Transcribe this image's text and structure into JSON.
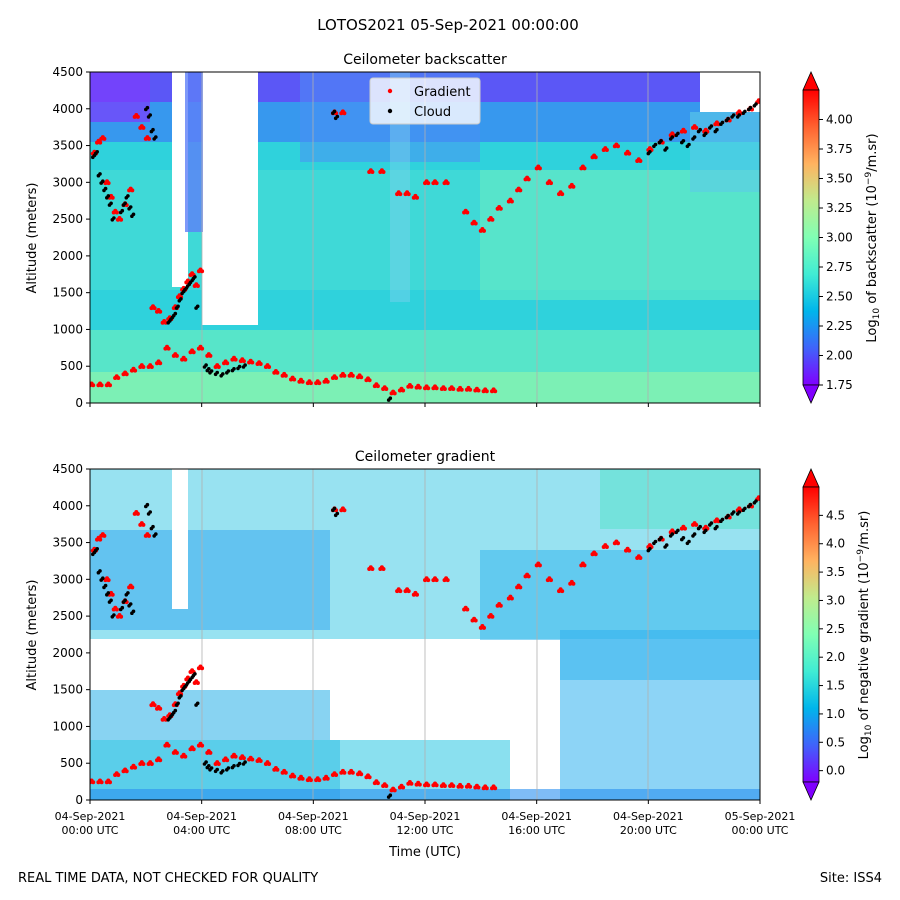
{
  "suptitle": "LOTOS2021 05-Sep-2021 00:00:00",
  "footer_left": "REAL TIME DATA, NOT CHECKED FOR QUALITY",
  "footer_right": "Site: ISS4",
  "colormap": [
    "#8000ff",
    "#4063fb",
    "#00b5eb",
    "#40ecd4",
    "#80ffb4",
    "#c0eb8d",
    "#ffb360",
    "#ff6230",
    "#ff0000"
  ],
  "series_colors": {
    "gradient": "#ff0000",
    "cloud": "#000000"
  },
  "chart_data": [
    {
      "type": "heatmap",
      "title": "Ceilometer backscatter",
      "ylabel": "Altitude (meters)",
      "xlabel": "",
      "x_tick_labels": [],
      "ylim": [
        0,
        4500
      ],
      "xlim_hours": [
        0,
        24
      ],
      "y_ticks": [
        0,
        500,
        1000,
        1500,
        2000,
        2500,
        3000,
        3500,
        4000,
        4500
      ],
      "colorbar": {
        "label_pre": "Log",
        "label_sub": "10",
        "label_mid": " of backscatter (10",
        "label_sup": "−9",
        "label_post": "/m.sr)",
        "range": [
          1.75,
          4.25
        ],
        "ticks": [
          "1.75",
          "2.00",
          "2.25",
          "2.50",
          "2.75",
          "3.00",
          "3.25",
          "3.50",
          "3.75",
          "4.00"
        ],
        "extend": "both"
      },
      "legend": {
        "position": "top-center",
        "entries": [
          {
            "label": "Gradient",
            "color": "#ff0000"
          },
          {
            "label": "Cloud",
            "color": "#000000"
          }
        ]
      },
      "field_description": "mostly 2.3-2.7 (cyan/teal) with higher values near surface, purple/blue low values aloft",
      "gradient_series": {
        "x_hours": [
          0.0,
          0.3,
          0.6,
          0.9,
          1.2,
          1.5,
          1.8,
          2.1,
          2.4,
          2.7,
          3.0,
          3.3,
          3.6,
          3.9,
          4.2,
          4.5,
          4.8,
          5.1,
          5.4,
          5.7,
          6.0,
          6.3,
          6.6,
          6.9,
          7.2,
          7.5,
          7.8,
          8.1,
          8.4,
          8.7,
          9.0,
          9.3,
          9.6,
          9.9,
          10.2,
          10.5,
          10.8,
          11.1,
          11.4,
          11.7,
          12.0,
          12.3,
          12.6,
          12.9,
          13.2,
          13.5,
          13.8,
          14.1,
          14.4
        ],
        "y_m": [
          250,
          250,
          250,
          350,
          400,
          450,
          500,
          500,
          550,
          750,
          650,
          600,
          700,
          750,
          650,
          500,
          550,
          600,
          580,
          560,
          540,
          500,
          420,
          380,
          330,
          300,
          280,
          280,
          300,
          350,
          380,
          380,
          360,
          320,
          240,
          200,
          140,
          180,
          230,
          220,
          210,
          210,
          200,
          200,
          190,
          190,
          180,
          170,
          170
        ]
      },
      "gradient_upper": {
        "x_hours": [
          0.1,
          0.25,
          0.4,
          0.55,
          0.7,
          0.85,
          1.0,
          1.2,
          1.4,
          1.6,
          1.8,
          2.0,
          2.2,
          2.4,
          2.6,
          2.8,
          3.0,
          3.15,
          3.3,
          3.45,
          3.6,
          3.75,
          3.9,
          8.7,
          9.0,
          10.0,
          10.4,
          11.0,
          11.3,
          11.6,
          12.0,
          12.3,
          12.7,
          13.4,
          13.7,
          14.0,
          14.3,
          14.6,
          15.0,
          15.3,
          15.6,
          16.0,
          16.4,
          16.8,
          17.2,
          17.6,
          18.0,
          18.4,
          18.8,
          19.2,
          19.6,
          20.0,
          20.4,
          20.8,
          21.2,
          21.6,
          22.0,
          22.4,
          22.8,
          23.2,
          23.6,
          23.9
        ],
        "y_m": [
          3400,
          3550,
          3600,
          3000,
          2800,
          2600,
          2500,
          2700,
          2900,
          3900,
          3750,
          3600,
          1300,
          1250,
          1100,
          1150,
          1300,
          1450,
          1550,
          1650,
          1750,
          1600,
          1800,
          3950,
          3950,
          3150,
          3150,
          2850,
          2850,
          2800,
          3000,
          3000,
          3000,
          2600,
          2450,
          2350,
          2500,
          2650,
          2750,
          2900,
          3050,
          3200,
          3000,
          2850,
          2950,
          3200,
          3350,
          3450,
          3500,
          3400,
          3300,
          3450,
          3550,
          3650,
          3700,
          3750,
          3700,
          3800,
          3850,
          3950,
          4000,
          4100
        ]
      },
      "cloud_series": {
        "x_hours": [
          0.1,
          0.2,
          0.3,
          0.4,
          0.5,
          0.6,
          0.7,
          0.8,
          1.1,
          1.2,
          1.3,
          1.4,
          1.5,
          2.0,
          2.1,
          2.2,
          2.3,
          2.8,
          2.9,
          3.0,
          3.1,
          3.2,
          3.3,
          3.4,
          3.5,
          3.6,
          3.7,
          3.8,
          4.1,
          4.2,
          4.3,
          4.5,
          4.7,
          4.9,
          5.1,
          5.3,
          5.5,
          8.7,
          8.8,
          10.7,
          20.0,
          20.2,
          20.4,
          20.6,
          20.8,
          21.0,
          21.2,
          21.4,
          21.6,
          21.8,
          22.0,
          22.2,
          22.4,
          22.6,
          22.8,
          23.0,
          23.2,
          23.4,
          23.6,
          23.8
        ],
        "y_m": [
          3350,
          3400,
          3100,
          3000,
          2900,
          2800,
          2700,
          2500,
          2600,
          2700,
          2800,
          2650,
          2550,
          4000,
          3900,
          3700,
          3600,
          1100,
          1150,
          1200,
          1300,
          1400,
          1500,
          1550,
          1600,
          1650,
          1700,
          1300,
          500,
          450,
          420,
          400,
          380,
          420,
          450,
          480,
          500,
          3950,
          3880,
          50,
          3400,
          3500,
          3550,
          3450,
          3600,
          3650,
          3550,
          3500,
          3600,
          3700,
          3650,
          3750,
          3700,
          3800,
          3850,
          3900,
          3900,
          3950,
          4000,
          4050
        ]
      }
    },
    {
      "type": "heatmap",
      "title": "Ceilometer gradient",
      "ylabel": "Altitude (meters)",
      "xlabel": "Time (UTC)",
      "x_tick_labels": [
        "04-Sep-2021\n00:00 UTC",
        "04-Sep-2021\n04:00 UTC",
        "04-Sep-2021\n08:00 UTC",
        "04-Sep-2021\n12:00 UTC",
        "04-Sep-2021\n16:00 UTC",
        "04-Sep-2021\n20:00 UTC",
        "05-Sep-2021\n00:00 UTC"
      ],
      "ylim": [
        0,
        4500
      ],
      "xlim_hours": [
        0,
        24
      ],
      "y_ticks": [
        0,
        500,
        1000,
        1500,
        2000,
        2500,
        3000,
        3500,
        4000,
        4500
      ],
      "colorbar": {
        "label_pre": "Log",
        "label_sub": "10",
        "label_mid": " of negative gradient (10",
        "label_sup": "−9",
        "label_post": "/m.sr)",
        "range": [
          -0.2,
          5.0
        ],
        "ticks": [
          "0.0",
          "0.5",
          "1.0",
          "1.5",
          "2.0",
          "2.5",
          "3.0",
          "3.5",
          "4.0",
          "4.5"
        ],
        "extend": "both"
      },
      "field_description": "patchy 1.0-2.5 values with large white (masked) regions in the middle altitudes",
      "same_points_as_first_panel": true
    }
  ]
}
